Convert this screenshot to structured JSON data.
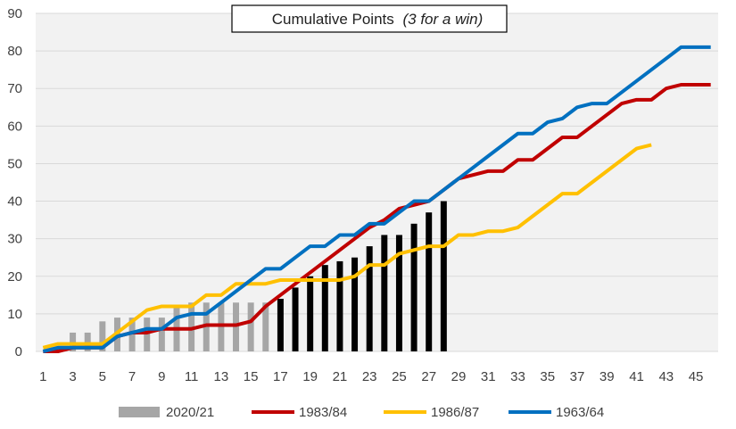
{
  "chart_data": {
    "type": "bar+line",
    "title": "Cumulative Points",
    "title_note": "(3 for a win)",
    "xlabel": "",
    "ylabel": "",
    "ylim": [
      0,
      90
    ],
    "y_ticks": [
      0,
      10,
      20,
      30,
      40,
      50,
      60,
      70,
      80,
      90
    ],
    "x_range": [
      1,
      46
    ],
    "x_tick_labels": [
      1,
      3,
      5,
      7,
      9,
      11,
      13,
      15,
      17,
      19,
      21,
      23,
      25,
      27,
      29,
      31,
      33,
      35,
      37,
      39,
      41,
      43,
      45
    ],
    "grid": "horizontal",
    "legend_position": "bottom",
    "bar_series": {
      "name": "2020/21",
      "highlight_from_game": 17,
      "values": [
        0,
        1,
        5,
        5,
        8,
        9,
        9,
        9,
        9,
        12,
        13,
        13,
        13,
        13,
        13,
        13,
        14,
        17,
        20,
        23,
        24,
        25,
        28,
        31,
        31,
        34,
        37,
        40
      ]
    },
    "line_series": [
      {
        "name": "1983/84",
        "color": "#c00000",
        "values": [
          0,
          0,
          1,
          1,
          1,
          4,
          5,
          5,
          6,
          6,
          6,
          7,
          7,
          7,
          8,
          12,
          15,
          18,
          21,
          24,
          27,
          30,
          33,
          35,
          38,
          39,
          40,
          43,
          46,
          47,
          48,
          48,
          51,
          51,
          54,
          57,
          57,
          60,
          63,
          66,
          67,
          67,
          70,
          71,
          71,
          71
        ]
      },
      {
        "name": "1986/87",
        "color": "#ffc000",
        "values": [
          1,
          2,
          2,
          2,
          2,
          5,
          8,
          11,
          12,
          12,
          12,
          15,
          15,
          18,
          18,
          18,
          19,
          19,
          19,
          19,
          19,
          20,
          23,
          23,
          26,
          27,
          28,
          28,
          31,
          31,
          32,
          32,
          33,
          36,
          39,
          42,
          42,
          45,
          48,
          51,
          54,
          55
        ]
      },
      {
        "name": "1963/64",
        "color": "#0070c0",
        "values": [
          0,
          1,
          1,
          1,
          1,
          4,
          5,
          6,
          6,
          9,
          10,
          10,
          13,
          16,
          19,
          22,
          22,
          25,
          28,
          28,
          31,
          31,
          34,
          34,
          37,
          40,
          40,
          43,
          46,
          49,
          52,
          55,
          58,
          58,
          61,
          62,
          65,
          66,
          66,
          69,
          72,
          75,
          78,
          81,
          81,
          81
        ]
      }
    ]
  },
  "colors": {
    "bar_early": "#a6a6a6",
    "bar_highlight": "#000000",
    "grid": "#d9d9d9",
    "plot_background": "#f2f2f2"
  }
}
